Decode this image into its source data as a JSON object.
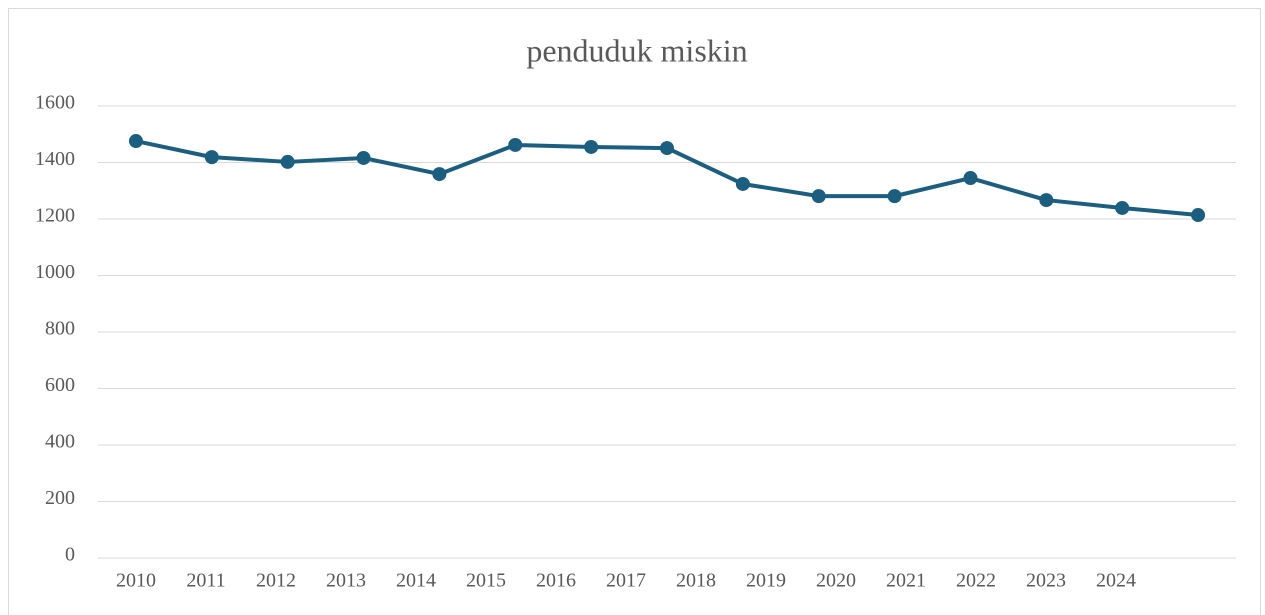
{
  "chart_data": {
    "type": "line",
    "title": "penduduk miskin",
    "categories": [
      "2010",
      "2011",
      "2012",
      "2013",
      "2014",
      "2015",
      "2016",
      "2017",
      "2018",
      "2019",
      "2020",
      "2021",
      "2022",
      "2023",
      "2024"
    ],
    "series": [
      {
        "name": "penduduk miskin",
        "color": "#1b5e80",
        "values": [
          1476,
          1419,
          1402,
          1416,
          1359,
          1462,
          1455,
          1451,
          1324,
          1281,
          1281,
          1345,
          1267,
          1239,
          1214
        ]
      }
    ],
    "ylim": [
      0,
      1600
    ],
    "yticks": [
      0,
      200,
      400,
      600,
      800,
      1000,
      1200,
      1400,
      1600
    ],
    "grid": true
  }
}
